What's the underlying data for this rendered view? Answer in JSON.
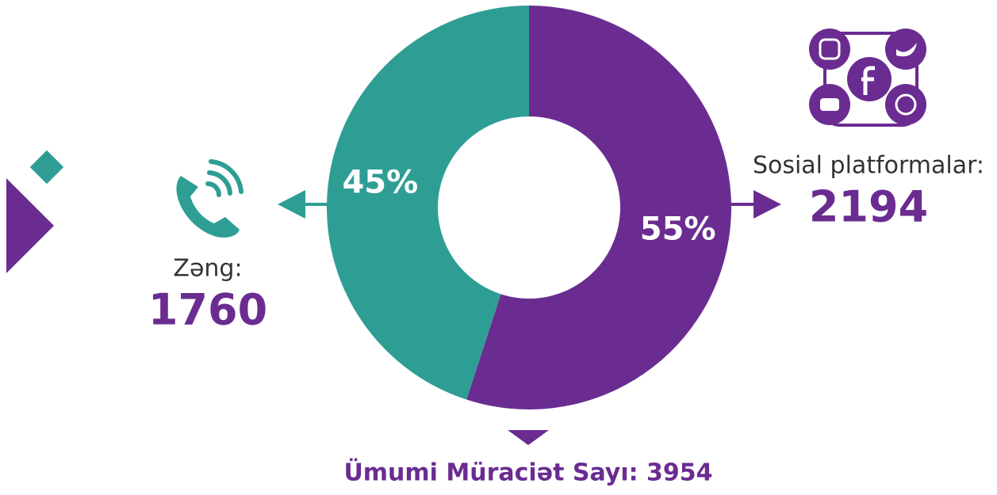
{
  "chart_data": {
    "type": "donut",
    "title": "Ümumi Müraciət Sayı: 3954",
    "categories": [
      "Sosial platformalar:",
      "Zəng:"
    ],
    "values": [
      55,
      45
    ],
    "value_labels": [
      "55%",
      "45%"
    ],
    "counts": [
      2194,
      1760
    ],
    "colors": [
      "#6a2c91",
      "#2e9e94"
    ]
  }
}
